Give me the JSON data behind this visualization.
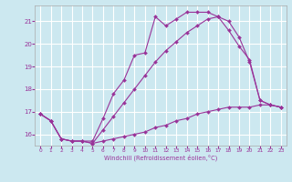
{
  "xlabel": "Windchill (Refroidissement éolien,°C)",
  "bg_color": "#cce8f0",
  "grid_color": "#ffffff",
  "line_color": "#993399",
  "xlim": [
    -0.5,
    23.5
  ],
  "ylim": [
    15.5,
    21.7
  ],
  "yticks": [
    16,
    17,
    18,
    19,
    20,
    21
  ],
  "xticks": [
    0,
    1,
    2,
    3,
    4,
    5,
    6,
    7,
    8,
    9,
    10,
    11,
    12,
    13,
    14,
    15,
    16,
    17,
    18,
    19,
    20,
    21,
    22,
    23
  ],
  "series": [
    {
      "x": [
        0,
        1,
        2,
        3,
        4,
        5,
        6,
        7,
        8,
        9,
        10,
        11,
        12,
        13,
        14,
        15,
        16,
        17,
        18,
        19,
        20,
        21,
        22,
        23
      ],
      "y": [
        16.9,
        16.6,
        15.8,
        15.7,
        15.7,
        15.7,
        16.7,
        17.8,
        18.4,
        19.5,
        19.6,
        21.2,
        20.8,
        21.1,
        21.4,
        21.4,
        21.4,
        21.2,
        20.6,
        19.9,
        19.3,
        17.5,
        17.3,
        17.2
      ]
    },
    {
      "x": [
        0,
        1,
        2,
        3,
        4,
        5,
        6,
        7,
        8,
        9,
        10,
        11,
        12,
        13,
        14,
        15,
        16,
        17,
        18,
        19,
        20,
        21,
        22,
        23
      ],
      "y": [
        16.9,
        16.6,
        15.8,
        15.7,
        15.7,
        15.6,
        16.2,
        16.8,
        17.4,
        18.0,
        18.6,
        19.2,
        19.7,
        20.1,
        20.5,
        20.8,
        21.1,
        21.2,
        21.0,
        20.3,
        19.2,
        17.5,
        17.3,
        17.2
      ]
    },
    {
      "x": [
        0,
        1,
        2,
        3,
        4,
        5,
        6,
        7,
        8,
        9,
        10,
        11,
        12,
        13,
        14,
        15,
        16,
        17,
        18,
        19,
        20,
        21,
        22,
        23
      ],
      "y": [
        16.9,
        16.6,
        15.8,
        15.7,
        15.7,
        15.6,
        15.7,
        15.8,
        15.9,
        16.0,
        16.1,
        16.3,
        16.4,
        16.6,
        16.7,
        16.9,
        17.0,
        17.1,
        17.2,
        17.2,
        17.2,
        17.3,
        17.3,
        17.2
      ]
    }
  ]
}
